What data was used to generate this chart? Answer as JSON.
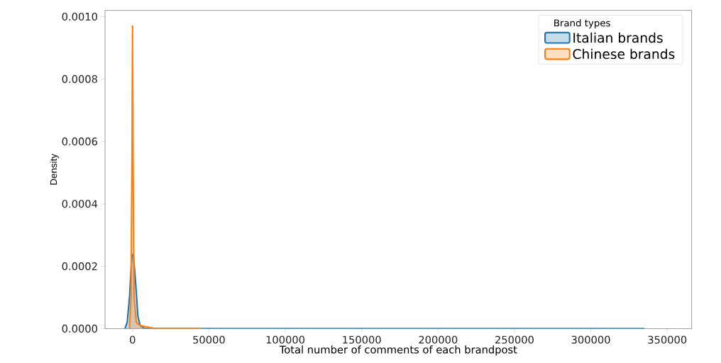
{
  "chart_data": {
    "type": "area",
    "xlabel": "Total number of comments of each brandpost",
    "ylabel": "Density",
    "legend_title": "Brand types",
    "legend": "top right",
    "xlim": [
      -18000,
      366000
    ],
    "ylim": [
      0,
      0.00102
    ],
    "xticks": [
      0,
      50000,
      100000,
      150000,
      200000,
      250000,
      300000,
      350000
    ],
    "yticks": [
      {
        "value": 0,
        "label": "0.0000"
      },
      {
        "value": 0.0002,
        "label": "0.0002"
      },
      {
        "value": 0.0004,
        "label": "0.0004"
      },
      {
        "value": 0.0006,
        "label": "0.0006"
      },
      {
        "value": 0.0008,
        "label": "0.0008"
      },
      {
        "value": 0.001,
        "label": "0.0010"
      }
    ],
    "series": [
      {
        "name": "Italian brands",
        "color": "#1f77b4",
        "x": [
          -5000,
          -3500,
          -2000,
          -500,
          500,
          2000,
          3500,
          5000,
          8000,
          15000,
          40000,
          100000,
          200000,
          335000
        ],
        "values": [
          0,
          2e-05,
          0.0001,
          0.00023,
          0.00024,
          0.00015,
          4e-05,
          1e-05,
          0,
          0,
          0,
          0,
          0,
          0
        ]
      },
      {
        "name": "Chinese brands",
        "color": "#ff7f0e",
        "x": [
          -2000,
          -1000,
          -300,
          0,
          300,
          1000,
          2500,
          5000,
          15000,
          30000,
          45000
        ],
        "values": [
          0,
          0.0001,
          0.0006,
          0.00097,
          0.0006,
          0.0001,
          2e-05,
          1e-05,
          0,
          0,
          0
        ]
      }
    ]
  }
}
